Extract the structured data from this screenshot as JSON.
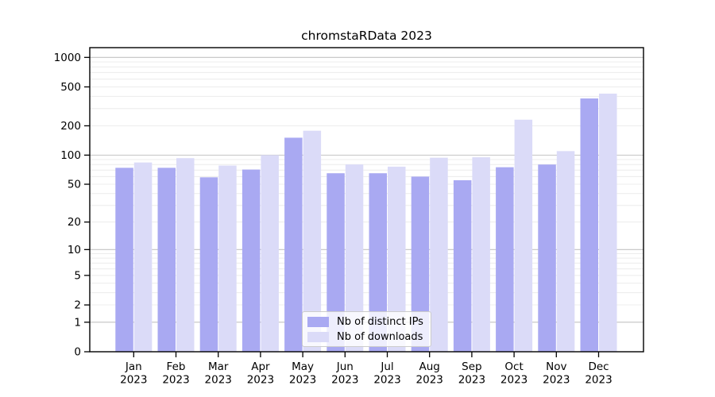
{
  "title": "chromstaRData 2023",
  "chart_data": {
    "type": "bar",
    "title": "chromstaRData 2023",
    "categories": [
      "Jan",
      "Feb",
      "Mar",
      "Apr",
      "May",
      "Jun",
      "Jul",
      "Aug",
      "Sep",
      "Oct",
      "Nov",
      "Dec"
    ],
    "xtick_year": "2023",
    "series": [
      {
        "name": "Nb of distinct IPs",
        "color": "#a9a9f2",
        "values": [
          74,
          74,
          59,
          71,
          151,
          65,
          65,
          60,
          55,
          75,
          80,
          381
        ]
      },
      {
        "name": "Nb of downloads",
        "color": "#dbdbf8",
        "values": [
          84,
          93,
          78,
          100,
          178,
          80,
          76,
          94,
          95,
          231,
          110,
          427
        ]
      }
    ],
    "yscale": "log10(value+1)",
    "yticks": [
      0,
      1,
      2,
      5,
      10,
      20,
      50,
      100,
      200,
      500,
      1000
    ],
    "ylim": [
      0,
      1100
    ],
    "grid": "horizontal",
    "legend_position": "lower center",
    "colors": {
      "major_grid": "#c2c2c2",
      "minor_grid": "#ececec",
      "axis_line": "#000000",
      "tick_text": "#000000",
      "background": "#ffffff"
    }
  }
}
